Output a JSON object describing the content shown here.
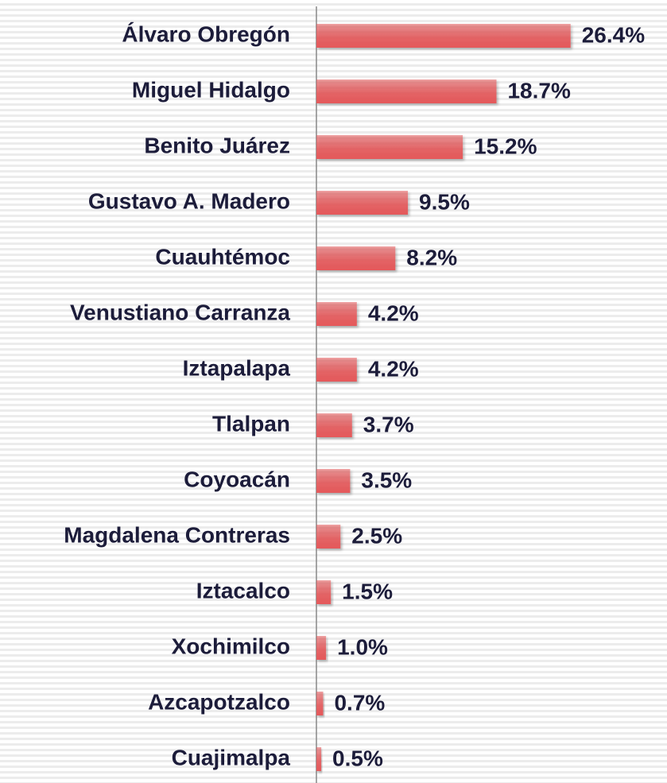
{
  "chart_data": {
    "type": "barh",
    "categories": [
      "Álvaro Obregón",
      "Miguel Hidalgo",
      "Benito Juárez",
      "Gustavo A. Madero",
      "Cuauhtémoc",
      "Venustiano Carranza",
      "Iztapalapa",
      "Tlalpan",
      "Coyoacán",
      "Magdalena Contreras",
      "Iztacalco",
      "Xochimilco",
      "Azcapotzalco",
      "Cuajimalpa"
    ],
    "values": [
      26.4,
      18.7,
      15.2,
      9.5,
      8.2,
      4.2,
      4.2,
      3.7,
      3.5,
      2.5,
      1.5,
      1.0,
      0.7,
      0.5
    ],
    "value_labels": [
      "26.4%",
      "18.7%",
      "15.2%",
      "9.5%",
      "8.2%",
      "4.2%",
      "4.2%",
      "3.7%",
      "3.5%",
      "2.5%",
      "1.5%",
      "1.0%",
      "0.7%",
      "0.5%"
    ],
    "color": "#e4585a",
    "xlim": [
      0,
      36
    ]
  }
}
